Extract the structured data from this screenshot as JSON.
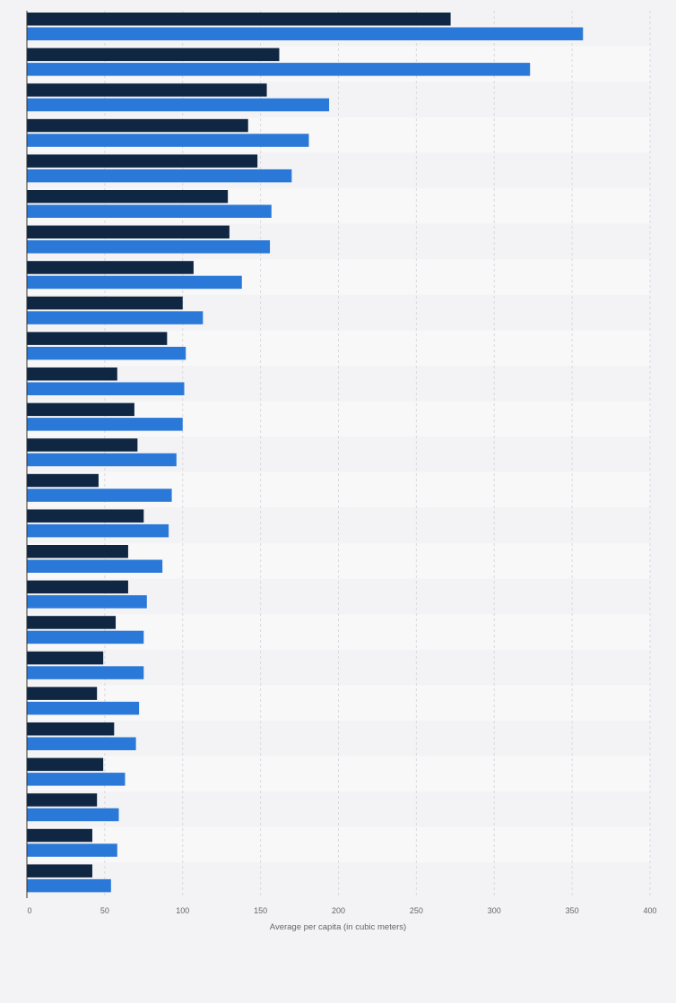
{
  "chart_data": {
    "type": "bar",
    "orientation": "horizontal",
    "categories": [
      "",
      "",
      "",
      "",
      "",
      "",
      "",
      "",
      "",
      "",
      "",
      "",
      "",
      "",
      "",
      "",
      "",
      "",
      "",
      "",
      "",
      "",
      "",
      "",
      ""
    ],
    "series": [
      {
        "color": "#0f2742",
        "values": [
          272,
          162,
          154,
          142,
          148,
          129,
          130,
          107,
          100,
          90,
          58,
          69,
          71,
          46,
          75,
          65,
          65,
          57,
          49,
          45,
          56,
          49,
          45,
          42,
          42
        ]
      },
      {
        "color": "#2a78d7",
        "values": [
          357,
          323,
          194,
          181,
          170,
          157,
          156,
          138,
          113,
          102,
          101,
          100,
          96,
          93,
          91,
          87,
          77,
          75,
          75,
          72,
          70,
          63,
          59,
          58,
          54
        ]
      }
    ],
    "xlabel": "Average per capita (in cubic meters)",
    "xlim": [
      0,
      400
    ],
    "xticks": [
      0,
      50,
      100,
      150,
      200,
      250,
      300,
      350,
      400
    ],
    "tick_labels": [
      "0",
      "50",
      "100",
      "150",
      "200",
      "250",
      "300",
      "350",
      "400"
    ],
    "grid": true,
    "legend": "none"
  }
}
